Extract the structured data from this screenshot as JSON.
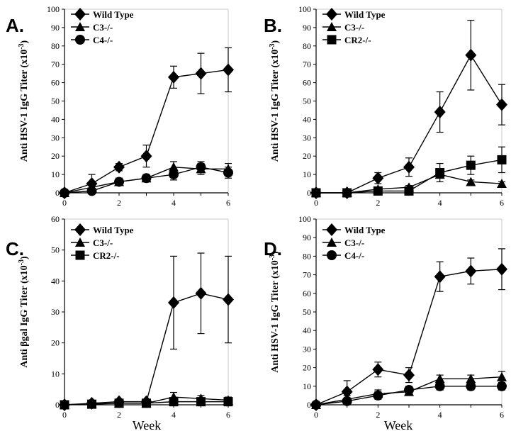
{
  "figure": {
    "xlabel": "Week"
  },
  "chart_data": [
    {
      "panel": "A.",
      "type": "line",
      "ylabel": "Anti HSV-1 IgG Titer (x10-3)",
      "ylabel_main": "Anti HSV-1 IgG Titer (x10",
      "ylabel_exp": "-3",
      "ylabel_close": ")",
      "ylim": [
        0,
        100
      ],
      "yticks": [
        0,
        10,
        20,
        30,
        40,
        50,
        60,
        70,
        80,
        90,
        100
      ],
      "xlim": [
        0,
        6
      ],
      "xticks": [
        0,
        2,
        4,
        6
      ],
      "xlabel": "",
      "series": [
        {
          "name": "Wild Type",
          "marker": "diamond",
          "x": [
            0,
            1,
            2,
            3,
            4,
            5,
            6
          ],
          "y": [
            0,
            5,
            14,
            20,
            63,
            65,
            67
          ],
          "err": [
            0,
            5,
            2,
            6,
            6,
            11,
            12
          ]
        },
        {
          "name": "C3-/-",
          "marker": "triangle",
          "x": [
            0,
            1,
            2,
            3,
            4,
            5,
            6
          ],
          "y": [
            0,
            3,
            6,
            8,
            14,
            13,
            13
          ],
          "err": [
            0,
            2,
            2,
            2,
            3,
            3,
            3
          ]
        },
        {
          "name": "C4-/-",
          "marker": "circle",
          "x": [
            0,
            1,
            2,
            3,
            4,
            5,
            6
          ],
          "y": [
            0,
            1,
            6,
            8,
            10,
            14,
            11
          ],
          "err": [
            0,
            1,
            2,
            2,
            3,
            3,
            3
          ]
        }
      ]
    },
    {
      "panel": "B.",
      "type": "line",
      "ylabel": "Anti HSV-1 IgG Titer (x10-3)",
      "ylabel_main": "Anti HSV-1 IgG Titer (x10",
      "ylabel_exp": "-3",
      "ylabel_close": ")",
      "ylim": [
        0,
        100
      ],
      "yticks": [
        0,
        10,
        20,
        30,
        40,
        50,
        60,
        70,
        80,
        90,
        100
      ],
      "xlim": [
        0,
        6
      ],
      "xticks": [
        0,
        2,
        4,
        6
      ],
      "xlabel": "",
      "series": [
        {
          "name": "Wild Type",
          "marker": "diamond",
          "x": [
            0,
            1,
            2,
            3,
            4,
            5,
            6
          ],
          "y": [
            0,
            0,
            8,
            14,
            44,
            75,
            48
          ],
          "err": [
            0,
            1,
            3,
            5,
            11,
            19,
            11
          ]
        },
        {
          "name": "C3-/-",
          "marker": "triangle",
          "x": [
            0,
            1,
            2,
            3,
            4,
            5,
            6
          ],
          "y": [
            0,
            0,
            2,
            3,
            10,
            6,
            5
          ],
          "err": [
            0,
            0,
            1,
            1,
            2,
            1,
            1
          ]
        },
        {
          "name": "CR2-/-",
          "marker": "square",
          "x": [
            0,
            1,
            2,
            3,
            4,
            5,
            6
          ],
          "y": [
            0,
            0,
            1,
            1,
            11,
            15,
            18
          ],
          "err": [
            0,
            0,
            1,
            1,
            5,
            5,
            7
          ]
        }
      ]
    },
    {
      "panel": "C.",
      "type": "line",
      "ylabel": "Anti βgal IgG Titer (x10-3)",
      "ylabel_main": "Anti βgal IgG Titer (x10",
      "ylabel_exp": "-3",
      "ylabel_close": ")",
      "ylim": [
        0,
        60
      ],
      "yticks": [
        0,
        10,
        20,
        30,
        40,
        50,
        60
      ],
      "xlim": [
        0,
        6
      ],
      "xticks": [
        0,
        2,
        4,
        6
      ],
      "xlabel": "Week",
      "series": [
        {
          "name": "Wild Type",
          "marker": "diamond",
          "x": [
            0,
            1,
            2,
            3,
            4,
            5,
            6
          ],
          "y": [
            0,
            0.5,
            1,
            1,
            33,
            36,
            34
          ],
          "err": [
            0,
            0.5,
            0.5,
            0.5,
            15,
            13,
            14
          ]
        },
        {
          "name": "C3-/-",
          "marker": "triangle",
          "x": [
            0,
            1,
            2,
            3,
            4,
            5,
            6
          ],
          "y": [
            0,
            0.3,
            0.5,
            0.5,
            2.5,
            2,
            1.5
          ],
          "err": [
            0,
            0.3,
            0.3,
            0.3,
            1.5,
            1,
            1
          ]
        },
        {
          "name": "CR2-/-",
          "marker": "square",
          "x": [
            0,
            1,
            2,
            3,
            4,
            5,
            6
          ],
          "y": [
            0,
            0.2,
            0.5,
            0.5,
            1,
            1,
            1
          ],
          "err": [
            0,
            0.2,
            0.2,
            0.2,
            0.5,
            0.5,
            0.5
          ]
        }
      ]
    },
    {
      "panel": "D.",
      "type": "line",
      "ylabel": "Anti HSV-1 IgG Titer (x10-3)",
      "ylabel_main": "Anti HSV-1 IgG Titer (x10",
      "ylabel_exp": "-3",
      "ylabel_close": ")",
      "ylim": [
        0,
        100
      ],
      "yticks": [
        0,
        10,
        20,
        30,
        40,
        50,
        60,
        70,
        80,
        90,
        100
      ],
      "xlim": [
        0,
        6
      ],
      "xticks": [
        0,
        2,
        4,
        6
      ],
      "xlabel": "Week",
      "series": [
        {
          "name": "Wild Type",
          "marker": "diamond",
          "x": [
            0,
            1,
            2,
            3,
            4,
            5,
            6
          ],
          "y": [
            0,
            7,
            19,
            16,
            69,
            72,
            73
          ],
          "err": [
            0,
            6,
            4,
            4,
            8,
            7,
            11
          ]
        },
        {
          "name": "C3-/-",
          "marker": "triangle",
          "x": [
            0,
            1,
            2,
            3,
            4,
            5,
            6
          ],
          "y": [
            0,
            3,
            6,
            7,
            14,
            14,
            15
          ],
          "err": [
            0,
            2,
            2,
            2,
            2,
            2,
            3
          ]
        },
        {
          "name": "C4-/-",
          "marker": "circle",
          "x": [
            0,
            1,
            2,
            3,
            4,
            5,
            6
          ],
          "y": [
            0,
            2,
            5,
            8,
            10,
            10,
            10
          ],
          "err": [
            0,
            1,
            2,
            2,
            2,
            2,
            2
          ]
        }
      ]
    }
  ]
}
